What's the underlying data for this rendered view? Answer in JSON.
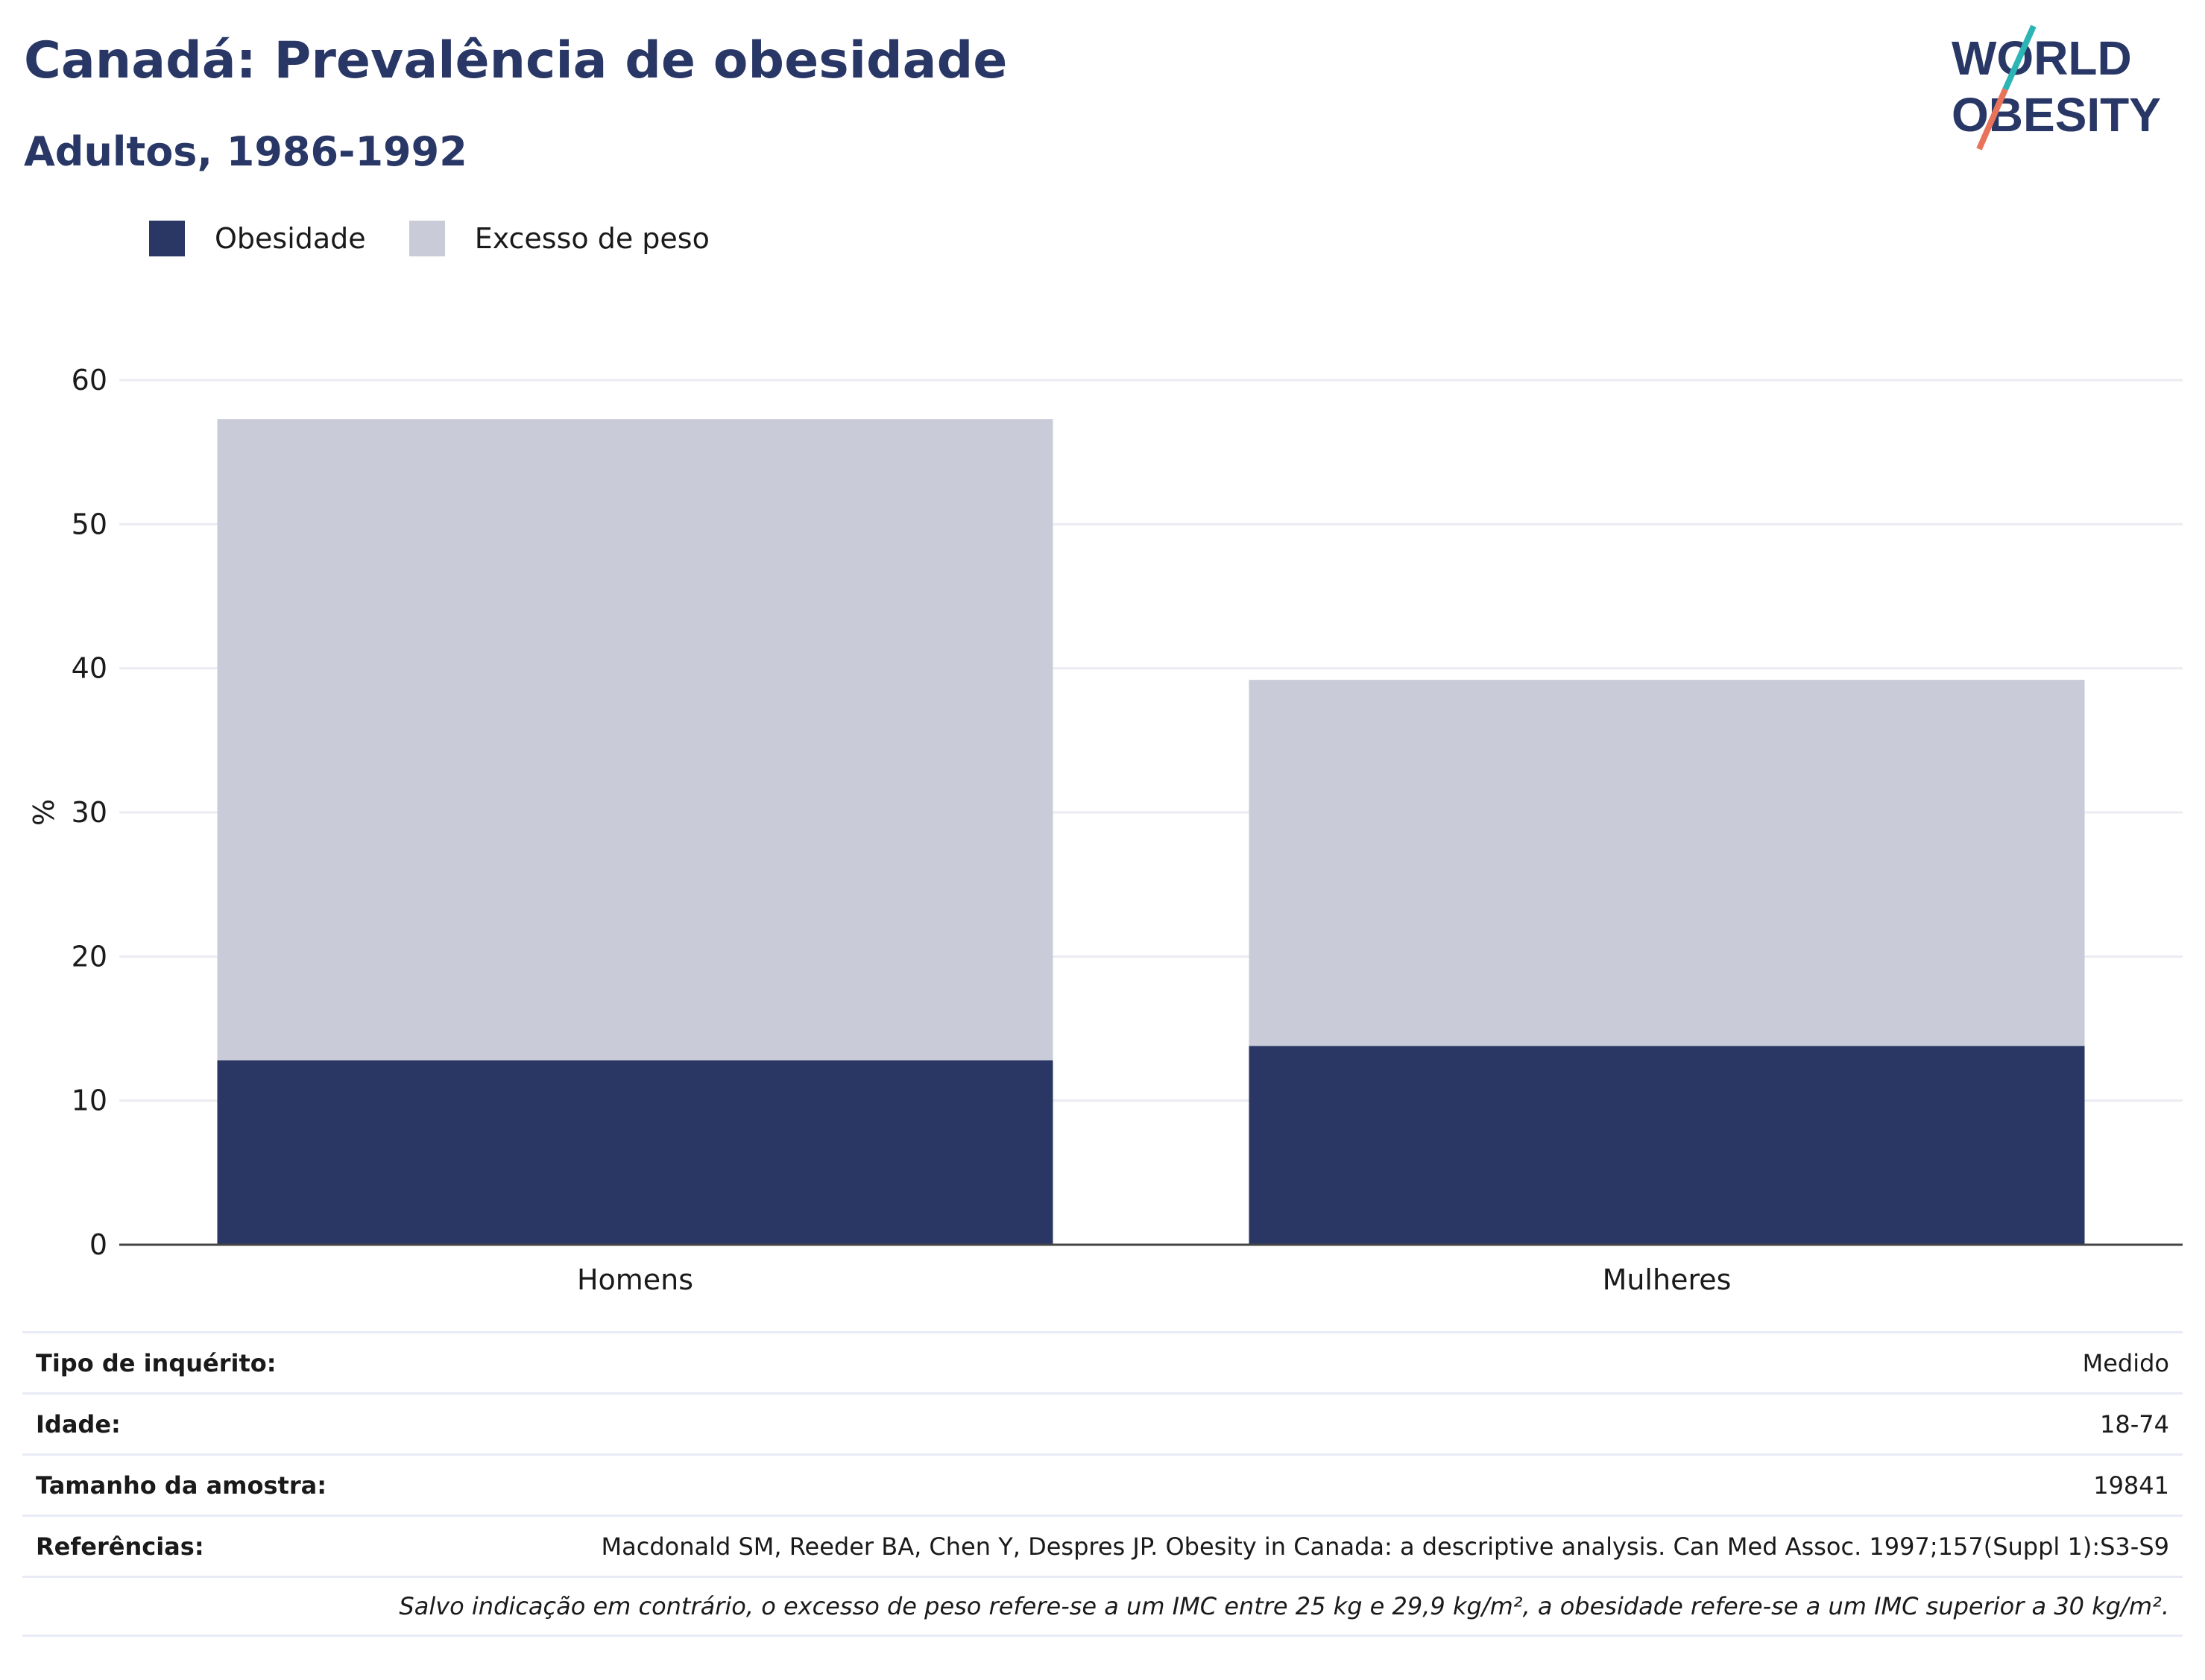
{
  "header": {
    "title": "Canadá: Prevalência de obesidade",
    "subtitle": "Adultos, 1986-1992"
  },
  "logo": {
    "line1": "WORLD",
    "line2": "OBESITY",
    "colors": {
      "text": "#283765",
      "teal": "#2bb5b5",
      "coral": "#e8735a"
    }
  },
  "legend": [
    {
      "label": "Obesidade",
      "color": "#2a3764"
    },
    {
      "label": "Excesso de peso",
      "color": "#c9ccd8"
    }
  ],
  "chart_data": {
    "type": "bar",
    "stacked": true,
    "categories": [
      "Homens",
      "Mulheres"
    ],
    "series": [
      {
        "name": "Obesidade",
        "values": [
          12.8,
          13.8
        ],
        "color": "#2a3764"
      },
      {
        "name": "Excesso de peso",
        "values": [
          44.5,
          25.4
        ],
        "color": "#c9ccd8"
      }
    ],
    "ylabel": "%",
    "ylim": [
      0,
      60
    ],
    "yticks": [
      0,
      10,
      20,
      30,
      40,
      50,
      60
    ],
    "grid": true,
    "legend_position": "top-left"
  },
  "meta": {
    "rows": [
      {
        "label": "Tipo de inquérito:",
        "value": "Medido"
      },
      {
        "label": "Idade:",
        "value": "18-74"
      },
      {
        "label": "Tamanho da amostra:",
        "value": "19841"
      },
      {
        "label": "Referências:",
        "value": "Macdonald SM, Reeder BA, Chen Y, Despres JP. Obesity in Canada: a descriptive analysis. Can Med Assoc. 1997;157(Suppl 1):S3-S9"
      }
    ],
    "note": "Salvo indicação em contrário, o excesso de peso refere-se a um IMC entre 25 kg e 29,9 kg/m², a obesidade refere-se a um IMC superior a 30 kg/m²."
  }
}
